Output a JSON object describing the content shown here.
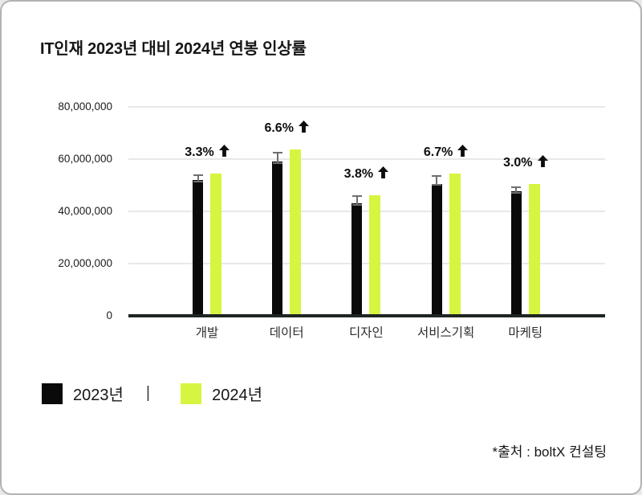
{
  "title": "IT인재 2023년 대비 2024년 연봉 인상률",
  "source_note": "*출처 : boltX 컨설팅",
  "legend": {
    "separator": "|",
    "items": [
      {
        "label": "2023년",
        "color": "#0a0a0a"
      },
      {
        "label": "2024년",
        "color": "#d6f541"
      }
    ]
  },
  "colors": {
    "bar_2023": "#0a0a0a",
    "bar_2024": "#d6f541",
    "baseline": "#1e2522",
    "gridline": "#e8e8e8",
    "error_bar": "#6f6f6f",
    "text": "#161616",
    "frame_border": "#b3b3b3"
  },
  "chart_data": {
    "type": "bar",
    "title": "IT인재 2023년 대비 2024년 연봉 인상률",
    "categories": [
      "개발",
      "데이터",
      "디자인",
      "서비스기획",
      "마케팅"
    ],
    "series": [
      {
        "name": "2023년",
        "color": "#0a0a0a",
        "values": [
          51500000,
          58500000,
          42500000,
          50000000,
          47000000
        ],
        "error_bars": [
          3000000,
          4500000,
          4000000,
          4300000,
          2800000
        ]
      },
      {
        "name": "2024년",
        "color": "#d6f541",
        "values": [
          54000000,
          63000000,
          45500000,
          54000000,
          50000000
        ]
      }
    ],
    "annotations": [
      {
        "label": "3.3%",
        "arrow": "up"
      },
      {
        "label": "6.6%",
        "arrow": "up"
      },
      {
        "label": "3.8%",
        "arrow": "up"
      },
      {
        "label": "6.7%",
        "arrow": "up"
      },
      {
        "label": "3.0%",
        "arrow": "up"
      }
    ],
    "xlabel": "",
    "ylabel": "",
    "ylim": [
      0,
      80000000
    ],
    "yticks": [
      0,
      20000000,
      40000000,
      60000000,
      80000000
    ],
    "ytick_labels": [
      "0",
      "20,000,000",
      "40,000,000",
      "60,000,000",
      "80,000,000"
    ],
    "grid": "horizontal",
    "legend_position": "bottom-left"
  }
}
